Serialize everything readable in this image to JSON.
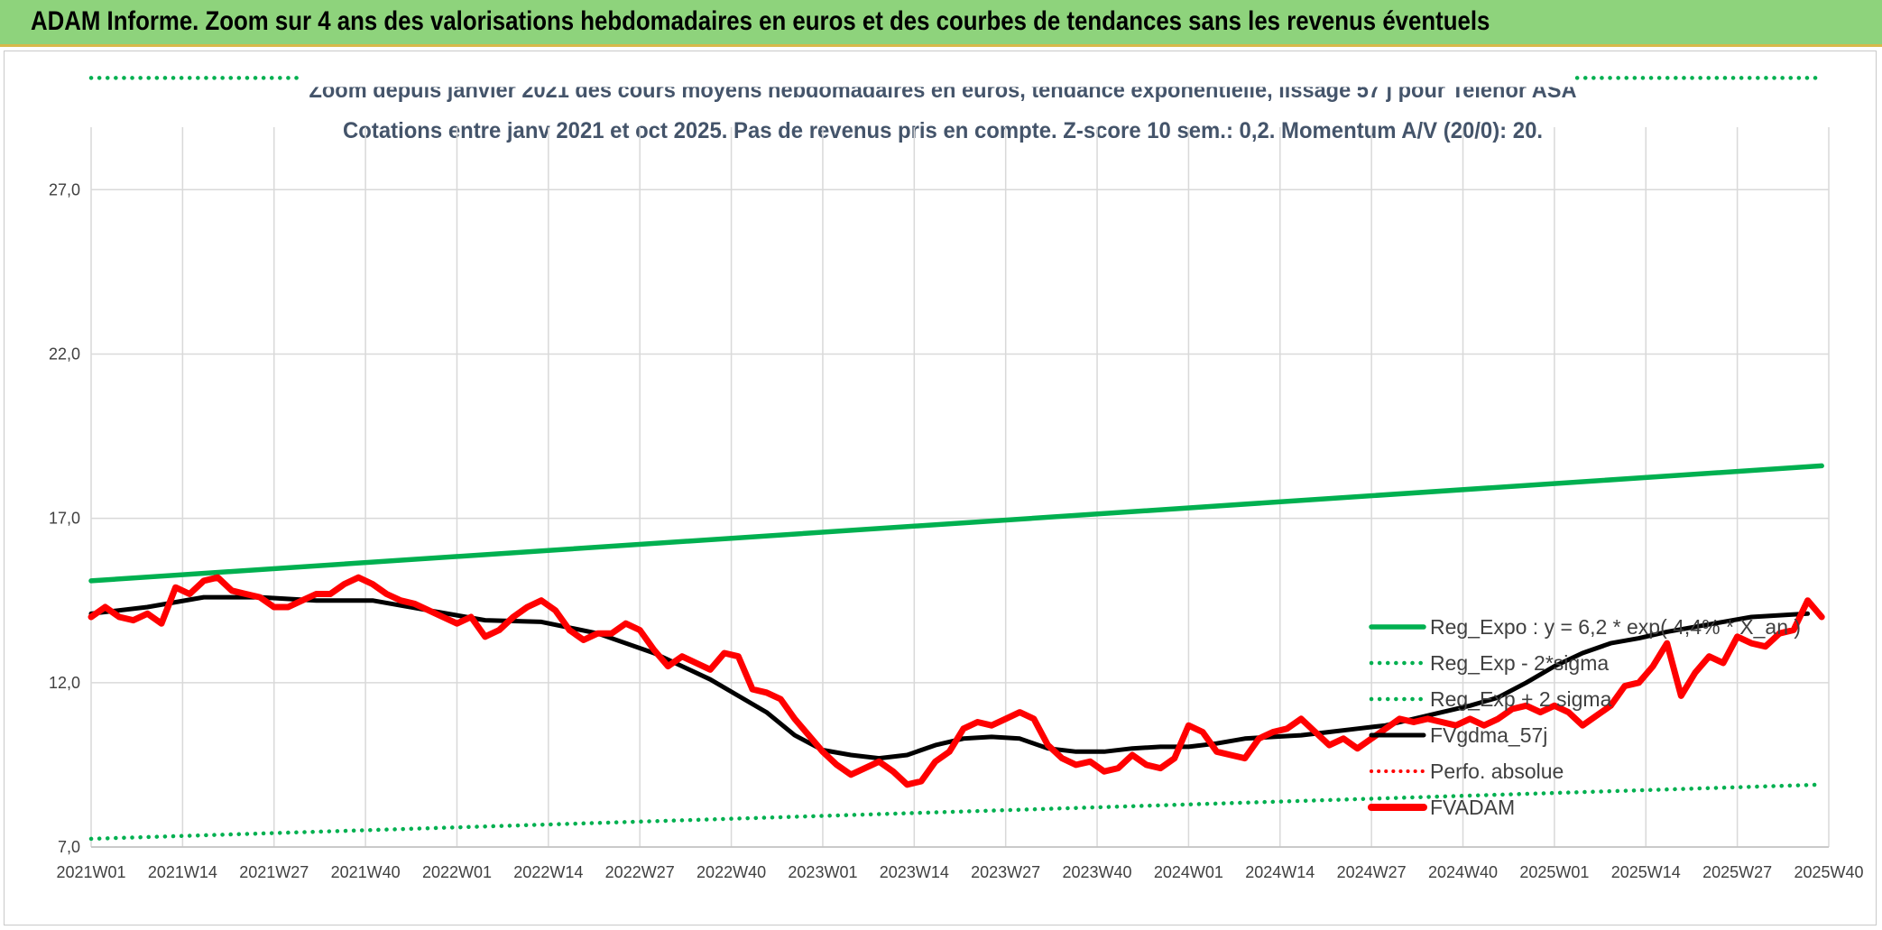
{
  "header": {
    "title": "ADAM Informe. Zoom sur 4 ans des valorisations hebdomadaires en euros et des courbes de tendances sans les revenus éventuels"
  },
  "chart_data": {
    "type": "line",
    "title": "Zoom depuis janvier 2021 des cours moyens hebdomadaires en euros, tendance exponentielle, lissage 57 j pour Telenor ASA",
    "subtitle": "Cotations entre janv 2021 et oct 2025. Pas de revenus pris en compte. Z-score 10 sem.: 0,2. Momentum A/V (20/0): 20.",
    "x_ticks": [
      "2021W01",
      "2021W14",
      "2021W27",
      "2021W40",
      "2022W01",
      "2022W14",
      "2022W27",
      "2022W40",
      "2023W01",
      "2023W14",
      "2023W27",
      "2023W40",
      "2024W01",
      "2024W14",
      "2024W27",
      "2024W40",
      "2025W01",
      "2025W14",
      "2025W27",
      "2025W40"
    ],
    "y_ticks": [
      "7,0",
      "12,0",
      "17,0",
      "22,0",
      "27,0"
    ],
    "ylim": [
      7,
      30
    ],
    "grid": true,
    "legend_placement": "right",
    "colors": {
      "green": "#00b050",
      "red": "#ff0000",
      "black": "#000000"
    },
    "series": [
      {
        "name": "Reg_Expo : y = 6,2 * exp( 4,4% *  X_an )",
        "style": "solid-green",
        "points": [
          [
            0,
            15.1
          ],
          [
            246,
            18.6
          ]
        ]
      },
      {
        "name": "Reg_Exp - 2*sigma",
        "style": "dotted-green",
        "points": [
          [
            0,
            7.25
          ],
          [
            246,
            8.9
          ]
        ]
      },
      {
        "name": "Reg_Exp + 2 sigma",
        "style": "dotted-green",
        "points": [
          [
            0,
            30.4
          ],
          [
            246,
            30.4
          ]
        ]
      },
      {
        "name": "FVgdma_57j",
        "style": "solid-black",
        "points": [
          [
            0,
            14.1
          ],
          [
            8,
            14.3
          ],
          [
            16,
            14.6
          ],
          [
            24,
            14.6
          ],
          [
            32,
            14.5
          ],
          [
            40,
            14.5
          ],
          [
            48,
            14.2
          ],
          [
            56,
            13.9
          ],
          [
            64,
            13.85
          ],
          [
            72,
            13.5
          ],
          [
            80,
            12.9
          ],
          [
            88,
            12.1
          ],
          [
            96,
            11.1
          ],
          [
            100,
            10.4
          ],
          [
            104,
            9.95
          ],
          [
            108,
            9.8
          ],
          [
            112,
            9.7
          ],
          [
            116,
            9.8
          ],
          [
            120,
            10.1
          ],
          [
            124,
            10.3
          ],
          [
            128,
            10.35
          ],
          [
            132,
            10.3
          ],
          [
            136,
            10.0
          ],
          [
            140,
            9.9
          ],
          [
            144,
            9.9
          ],
          [
            148,
            10.0
          ],
          [
            152,
            10.05
          ],
          [
            156,
            10.05
          ],
          [
            160,
            10.15
          ],
          [
            164,
            10.3
          ],
          [
            168,
            10.35
          ],
          [
            172,
            10.4
          ],
          [
            176,
            10.5
          ],
          [
            180,
            10.6
          ],
          [
            184,
            10.7
          ],
          [
            188,
            10.9
          ],
          [
            192,
            11.1
          ],
          [
            196,
            11.3
          ],
          [
            200,
            11.55
          ],
          [
            204,
            12.0
          ],
          [
            208,
            12.5
          ],
          [
            212,
            12.9
          ],
          [
            216,
            13.2
          ],
          [
            220,
            13.35
          ],
          [
            224,
            13.55
          ],
          [
            228,
            13.7
          ],
          [
            232,
            13.85
          ],
          [
            236,
            14.0
          ],
          [
            240,
            14.05
          ],
          [
            244,
            14.1
          ]
        ]
      },
      {
        "name": "Perfo. absolue",
        "style": "dotted-red",
        "points": []
      },
      {
        "name": "FVADAM",
        "style": "thick-red",
        "points": [
          [
            0,
            14.0
          ],
          [
            2,
            14.3
          ],
          [
            4,
            14.0
          ],
          [
            6,
            13.9
          ],
          [
            8,
            14.1
          ],
          [
            10,
            13.8
          ],
          [
            12,
            14.9
          ],
          [
            14,
            14.7
          ],
          [
            16,
            15.1
          ],
          [
            18,
            15.2
          ],
          [
            20,
            14.8
          ],
          [
            22,
            14.7
          ],
          [
            24,
            14.6
          ],
          [
            26,
            14.3
          ],
          [
            28,
            14.3
          ],
          [
            30,
            14.5
          ],
          [
            32,
            14.7
          ],
          [
            34,
            14.7
          ],
          [
            36,
            15.0
          ],
          [
            38,
            15.2
          ],
          [
            40,
            15.0
          ],
          [
            42,
            14.7
          ],
          [
            44,
            14.5
          ],
          [
            46,
            14.4
          ],
          [
            48,
            14.2
          ],
          [
            50,
            14.0
          ],
          [
            52,
            13.8
          ],
          [
            54,
            14.0
          ],
          [
            56,
            13.4
          ],
          [
            58,
            13.6
          ],
          [
            60,
            14.0
          ],
          [
            62,
            14.3
          ],
          [
            64,
            14.5
          ],
          [
            66,
            14.2
          ],
          [
            68,
            13.6
          ],
          [
            70,
            13.3
          ],
          [
            72,
            13.5
          ],
          [
            74,
            13.5
          ],
          [
            76,
            13.8
          ],
          [
            78,
            13.6
          ],
          [
            80,
            13.0
          ],
          [
            82,
            12.5
          ],
          [
            84,
            12.8
          ],
          [
            86,
            12.6
          ],
          [
            88,
            12.4
          ],
          [
            90,
            12.9
          ],
          [
            92,
            12.8
          ],
          [
            94,
            11.8
          ],
          [
            96,
            11.7
          ],
          [
            98,
            11.5
          ],
          [
            100,
            10.9
          ],
          [
            102,
            10.4
          ],
          [
            104,
            9.9
          ],
          [
            106,
            9.5
          ],
          [
            108,
            9.2
          ],
          [
            110,
            9.4
          ],
          [
            112,
            9.6
          ],
          [
            114,
            9.3
          ],
          [
            116,
            8.9
          ],
          [
            118,
            9.0
          ],
          [
            120,
            9.6
          ],
          [
            122,
            9.9
          ],
          [
            124,
            10.6
          ],
          [
            126,
            10.8
          ],
          [
            128,
            10.7
          ],
          [
            130,
            10.9
          ],
          [
            132,
            11.1
          ],
          [
            134,
            10.9
          ],
          [
            136,
            10.1
          ],
          [
            138,
            9.7
          ],
          [
            140,
            9.5
          ],
          [
            142,
            9.6
          ],
          [
            144,
            9.3
          ],
          [
            146,
            9.4
          ],
          [
            148,
            9.8
          ],
          [
            150,
            9.5
          ],
          [
            152,
            9.4
          ],
          [
            154,
            9.7
          ],
          [
            156,
            10.7
          ],
          [
            158,
            10.5
          ],
          [
            160,
            9.9
          ],
          [
            162,
            9.8
          ],
          [
            164,
            9.7
          ],
          [
            166,
            10.3
          ],
          [
            168,
            10.5
          ],
          [
            170,
            10.6
          ],
          [
            172,
            10.9
          ],
          [
            174,
            10.5
          ],
          [
            176,
            10.1
          ],
          [
            178,
            10.3
          ],
          [
            180,
            10.0
          ],
          [
            182,
            10.3
          ],
          [
            184,
            10.6
          ],
          [
            186,
            10.9
          ],
          [
            188,
            10.8
          ],
          [
            190,
            10.9
          ],
          [
            192,
            10.8
          ],
          [
            194,
            10.7
          ],
          [
            196,
            10.9
          ],
          [
            198,
            10.7
          ],
          [
            200,
            10.9
          ],
          [
            202,
            11.2
          ],
          [
            204,
            11.3
          ],
          [
            206,
            11.1
          ],
          [
            208,
            11.3
          ],
          [
            210,
            11.1
          ],
          [
            212,
            10.7
          ],
          [
            214,
            11.0
          ],
          [
            216,
            11.3
          ],
          [
            218,
            11.9
          ],
          [
            220,
            12.0
          ],
          [
            222,
            12.5
          ],
          [
            224,
            13.2
          ],
          [
            226,
            11.6
          ],
          [
            228,
            12.3
          ],
          [
            230,
            12.8
          ],
          [
            232,
            12.6
          ],
          [
            234,
            13.4
          ],
          [
            236,
            13.2
          ],
          [
            238,
            13.1
          ],
          [
            240,
            13.5
          ],
          [
            242,
            13.6
          ],
          [
            244,
            14.5
          ],
          [
            246,
            14.0
          ]
        ]
      }
    ]
  }
}
